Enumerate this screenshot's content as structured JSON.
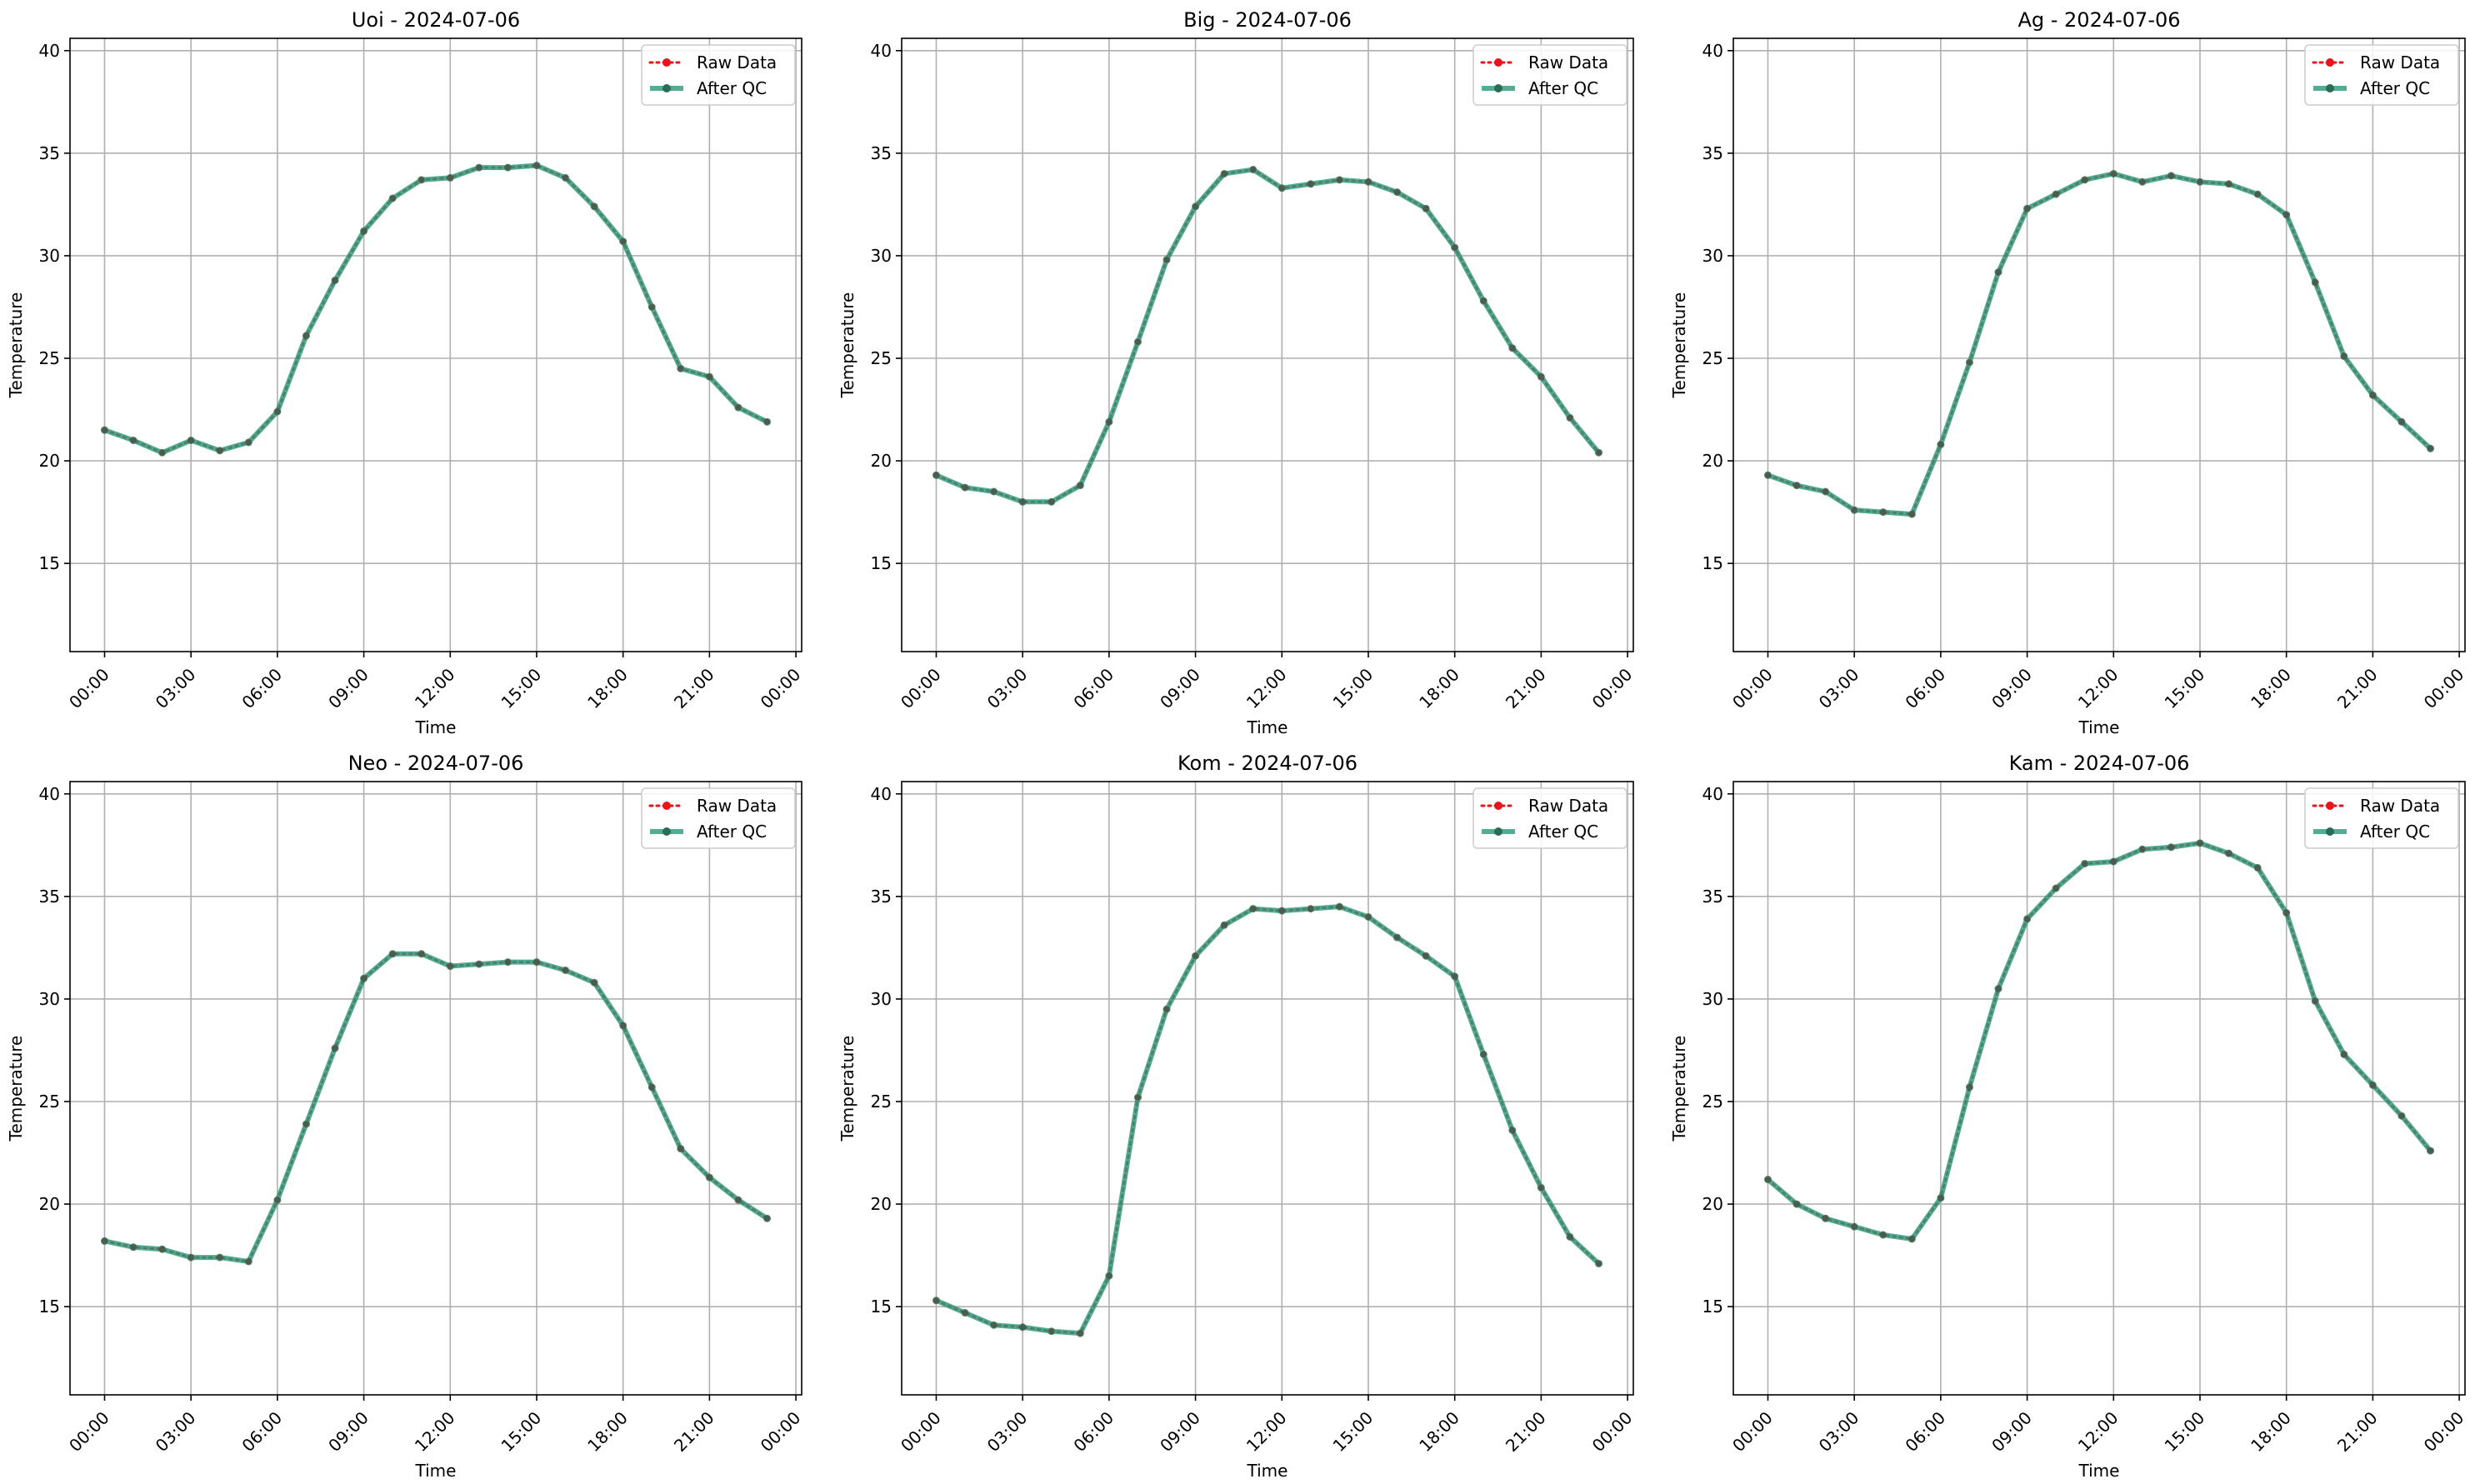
{
  "chart_data": [
    {
      "type": "line",
      "title": "Uoi - 2024-07-06",
      "xlabel": "Time",
      "ylabel": "Temperature",
      "x_ticks": [
        "00:00",
        "03:00",
        "06:00",
        "09:00",
        "12:00",
        "15:00",
        "18:00",
        "21:00",
        "00:00"
      ],
      "y_ticks": [
        15,
        20,
        25,
        30,
        35,
        40
      ],
      "ylim": [
        10.7,
        40.6
      ],
      "xlim_hours": [
        -1.2,
        24.2
      ],
      "grid": true,
      "legend_position": "top-right",
      "hours": [
        0,
        1,
        2,
        3,
        4,
        5,
        6,
        7,
        8,
        9,
        10,
        11,
        12,
        13,
        14,
        15,
        16,
        17,
        18,
        19,
        20,
        21,
        22,
        23
      ],
      "series": [
        {
          "name": "Raw Data",
          "color": "#e8141c",
          "style": "dotted",
          "values": [
            21.5,
            21.0,
            20.4,
            21.0,
            20.5,
            20.9,
            22.4,
            26.1,
            28.8,
            31.2,
            32.8,
            33.7,
            33.8,
            34.3,
            34.3,
            34.4,
            33.8,
            32.4,
            30.7,
            27.5,
            24.5,
            24.1,
            22.6,
            21.9
          ]
        },
        {
          "name": "After QC",
          "color": "#2d9a7c",
          "style": "solid",
          "values": [
            21.5,
            21.0,
            20.4,
            21.0,
            20.5,
            20.9,
            22.4,
            26.1,
            28.8,
            31.2,
            32.8,
            33.7,
            33.8,
            34.3,
            34.3,
            34.4,
            33.8,
            32.4,
            30.7,
            27.5,
            24.5,
            24.1,
            22.6,
            21.9
          ]
        }
      ]
    },
    {
      "type": "line",
      "title": "Big - 2024-07-06",
      "xlabel": "Time",
      "ylabel": "Temperature",
      "x_ticks": [
        "00:00",
        "03:00",
        "06:00",
        "09:00",
        "12:00",
        "15:00",
        "18:00",
        "21:00",
        "00:00"
      ],
      "y_ticks": [
        15,
        20,
        25,
        30,
        35,
        40
      ],
      "ylim": [
        10.7,
        40.6
      ],
      "xlim_hours": [
        -1.2,
        24.2
      ],
      "grid": true,
      "legend_position": "top-right",
      "hours": [
        0,
        1,
        2,
        3,
        4,
        5,
        6,
        7,
        8,
        9,
        10,
        11,
        12,
        13,
        14,
        15,
        16,
        17,
        18,
        19,
        20,
        21,
        22,
        23
      ],
      "series": [
        {
          "name": "Raw Data",
          "color": "#e8141c",
          "style": "dotted",
          "values": [
            19.3,
            18.7,
            18.5,
            18.0,
            18.0,
            18.8,
            21.9,
            25.8,
            29.8,
            32.4,
            34.0,
            34.2,
            33.3,
            33.5,
            33.7,
            33.6,
            33.1,
            32.3,
            30.4,
            27.8,
            25.5,
            24.1,
            22.1,
            20.4
          ]
        },
        {
          "name": "After QC",
          "color": "#2d9a7c",
          "style": "solid",
          "values": [
            19.3,
            18.7,
            18.5,
            18.0,
            18.0,
            18.8,
            21.9,
            25.8,
            29.8,
            32.4,
            34.0,
            34.2,
            33.3,
            33.5,
            33.7,
            33.6,
            33.1,
            32.3,
            30.4,
            27.8,
            25.5,
            24.1,
            22.1,
            20.4
          ]
        }
      ]
    },
    {
      "type": "line",
      "title": "Ag - 2024-07-06",
      "xlabel": "Time",
      "ylabel": "Temperature",
      "x_ticks": [
        "00:00",
        "03:00",
        "06:00",
        "09:00",
        "12:00",
        "15:00",
        "18:00",
        "21:00",
        "00:00"
      ],
      "y_ticks": [
        15,
        20,
        25,
        30,
        35,
        40
      ],
      "ylim": [
        10.7,
        40.6
      ],
      "xlim_hours": [
        -1.2,
        24.2
      ],
      "grid": true,
      "legend_position": "top-right",
      "hours": [
        0,
        1,
        2,
        3,
        4,
        5,
        6,
        7,
        8,
        9,
        10,
        11,
        12,
        13,
        14,
        15,
        16,
        17,
        18,
        19,
        20,
        21,
        22,
        23
      ],
      "series": [
        {
          "name": "Raw Data",
          "color": "#e8141c",
          "style": "dotted",
          "values": [
            19.3,
            18.8,
            18.5,
            17.6,
            17.5,
            17.4,
            20.8,
            24.8,
            29.2,
            32.3,
            33.0,
            33.7,
            34.0,
            33.6,
            33.9,
            33.6,
            33.5,
            33.0,
            32.0,
            28.7,
            25.1,
            23.2,
            21.9,
            20.6
          ]
        },
        {
          "name": "After QC",
          "color": "#2d9a7c",
          "style": "solid",
          "values": [
            19.3,
            18.8,
            18.5,
            17.6,
            17.5,
            17.4,
            20.8,
            24.8,
            29.2,
            32.3,
            33.0,
            33.7,
            34.0,
            33.6,
            33.9,
            33.6,
            33.5,
            33.0,
            32.0,
            28.7,
            25.1,
            23.2,
            21.9,
            20.6
          ]
        }
      ]
    },
    {
      "type": "line",
      "title": "Neo - 2024-07-06",
      "xlabel": "Time",
      "ylabel": "Temperature",
      "x_ticks": [
        "00:00",
        "03:00",
        "06:00",
        "09:00",
        "12:00",
        "15:00",
        "18:00",
        "21:00",
        "00:00"
      ],
      "y_ticks": [
        15,
        20,
        25,
        30,
        35,
        40
      ],
      "ylim": [
        10.7,
        40.6
      ],
      "xlim_hours": [
        -1.2,
        24.2
      ],
      "grid": true,
      "legend_position": "top-right",
      "hours": [
        0,
        1,
        2,
        3,
        4,
        5,
        6,
        7,
        8,
        9,
        10,
        11,
        12,
        13,
        14,
        15,
        16,
        17,
        18,
        19,
        20,
        21,
        22,
        23
      ],
      "series": [
        {
          "name": "Raw Data",
          "color": "#e8141c",
          "style": "dotted",
          "values": [
            18.2,
            17.9,
            17.8,
            17.4,
            17.4,
            17.2,
            20.2,
            23.9,
            27.6,
            31.0,
            32.2,
            32.2,
            31.6,
            31.7,
            31.8,
            31.8,
            31.4,
            30.8,
            28.7,
            25.7,
            22.7,
            21.3,
            20.2,
            19.3
          ]
        },
        {
          "name": "After QC",
          "color": "#2d9a7c",
          "style": "solid",
          "values": [
            18.2,
            17.9,
            17.8,
            17.4,
            17.4,
            17.2,
            20.2,
            23.9,
            27.6,
            31.0,
            32.2,
            32.2,
            31.6,
            31.7,
            31.8,
            31.8,
            31.4,
            30.8,
            28.7,
            25.7,
            22.7,
            21.3,
            20.2,
            19.3
          ]
        }
      ]
    },
    {
      "type": "line",
      "title": "Kom - 2024-07-06",
      "xlabel": "Time",
      "ylabel": "Temperature",
      "x_ticks": [
        "00:00",
        "03:00",
        "06:00",
        "09:00",
        "12:00",
        "15:00",
        "18:00",
        "21:00",
        "00:00"
      ],
      "y_ticks": [
        15,
        20,
        25,
        30,
        35,
        40
      ],
      "ylim": [
        10.7,
        40.6
      ],
      "xlim_hours": [
        -1.2,
        24.2
      ],
      "grid": true,
      "legend_position": "top-right",
      "hours": [
        0,
        1,
        2,
        3,
        4,
        5,
        6,
        7,
        8,
        9,
        10,
        11,
        12,
        13,
        14,
        15,
        16,
        17,
        18,
        19,
        20,
        21,
        22,
        23
      ],
      "series": [
        {
          "name": "Raw Data",
          "color": "#e8141c",
          "style": "dotted",
          "values": [
            15.3,
            14.7,
            14.1,
            14.0,
            13.8,
            13.7,
            16.5,
            25.2,
            29.5,
            32.1,
            33.6,
            34.4,
            34.3,
            34.4,
            34.5,
            34.0,
            33.0,
            32.1,
            31.1,
            27.3,
            23.6,
            20.8,
            18.4,
            17.1
          ]
        },
        {
          "name": "After QC",
          "color": "#2d9a7c",
          "style": "solid",
          "values": [
            15.3,
            14.7,
            14.1,
            14.0,
            13.8,
            13.7,
            16.5,
            25.2,
            29.5,
            32.1,
            33.6,
            34.4,
            34.3,
            34.4,
            34.5,
            34.0,
            33.0,
            32.1,
            31.1,
            27.3,
            23.6,
            20.8,
            18.4,
            17.1
          ]
        }
      ]
    },
    {
      "type": "line",
      "title": "Kam - 2024-07-06",
      "xlabel": "Time",
      "ylabel": "Temperature",
      "x_ticks": [
        "00:00",
        "03:00",
        "06:00",
        "09:00",
        "12:00",
        "15:00",
        "18:00",
        "21:00",
        "00:00"
      ],
      "y_ticks": [
        15,
        20,
        25,
        30,
        35,
        40
      ],
      "ylim": [
        10.7,
        40.6
      ],
      "xlim_hours": [
        -1.2,
        24.2
      ],
      "grid": true,
      "legend_position": "top-right",
      "hours": [
        0,
        1,
        2,
        3,
        4,
        5,
        6,
        7,
        8,
        9,
        10,
        11,
        12,
        13,
        14,
        15,
        16,
        17,
        18,
        19,
        20,
        21,
        22,
        23
      ],
      "series": [
        {
          "name": "Raw Data",
          "color": "#e8141c",
          "style": "dotted",
          "values": [
            21.2,
            20.0,
            19.3,
            18.9,
            18.5,
            18.3,
            20.3,
            25.7,
            30.5,
            33.9,
            35.4,
            36.6,
            36.7,
            37.3,
            37.4,
            37.6,
            37.1,
            36.4,
            34.2,
            29.9,
            27.3,
            25.8,
            24.3,
            22.6
          ]
        },
        {
          "name": "After QC",
          "color": "#2d9a7c",
          "style": "solid",
          "values": [
            21.2,
            20.0,
            19.3,
            18.9,
            18.5,
            18.3,
            20.3,
            25.7,
            30.5,
            33.9,
            35.4,
            36.6,
            36.7,
            37.3,
            37.4,
            37.6,
            37.1,
            36.4,
            34.2,
            29.9,
            27.3,
            25.8,
            24.3,
            22.6
          ]
        }
      ]
    }
  ]
}
